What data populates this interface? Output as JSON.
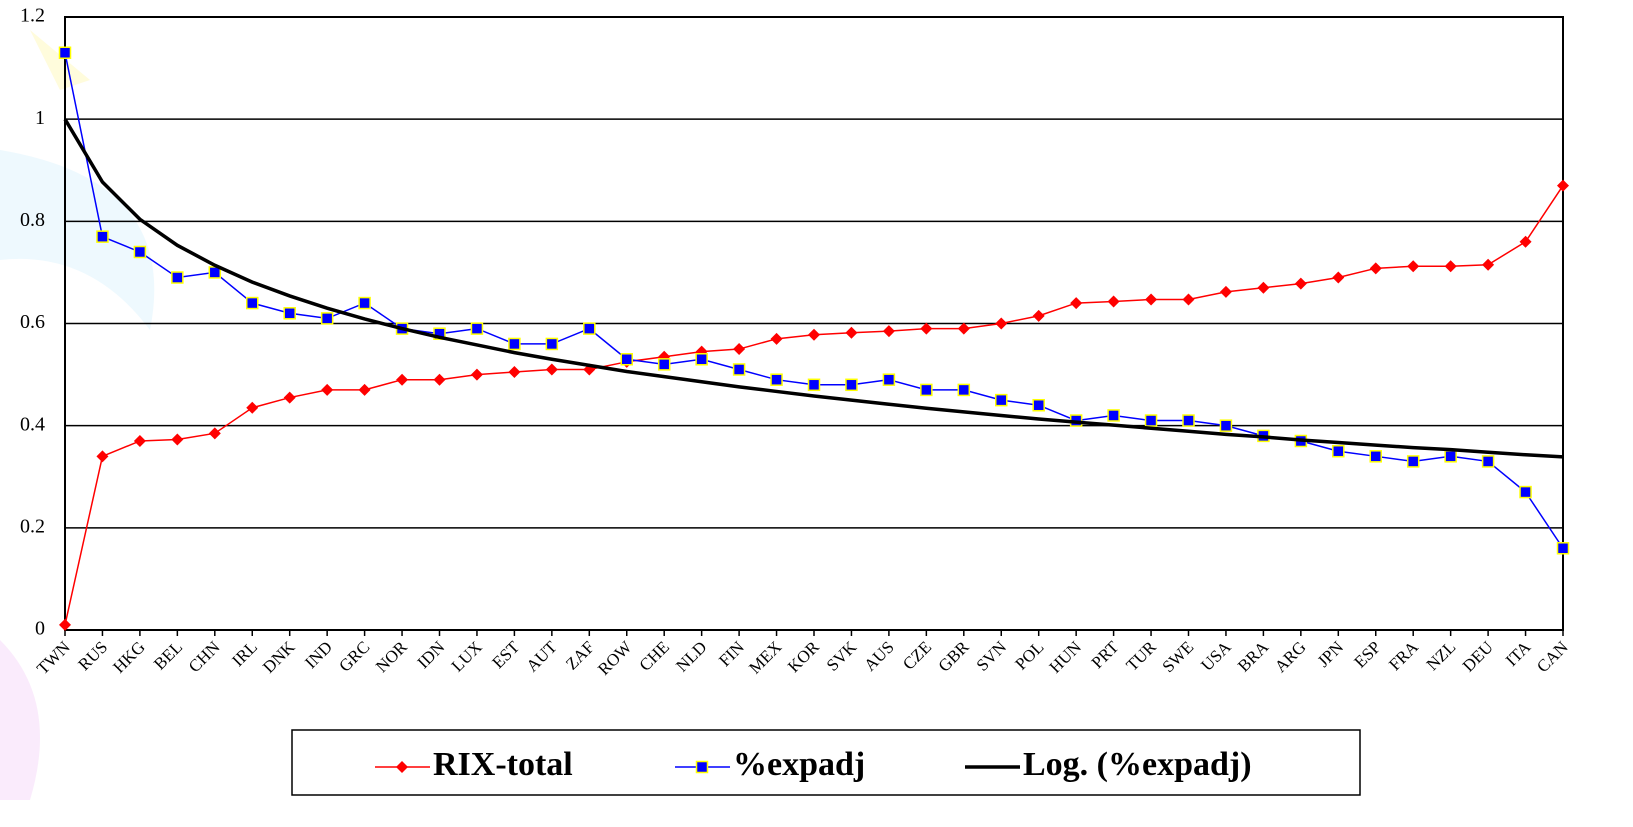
{
  "chart_data": {
    "type": "line",
    "categories": [
      "TWN",
      "RUS",
      "HKG",
      "BEL",
      "CHN",
      "IRL",
      "DNK",
      "IND",
      "GRC",
      "NOR",
      "IDN",
      "LUX",
      "EST",
      "AUT",
      "ZAF",
      "ROW",
      "CHE",
      "NLD",
      "FIN",
      "MEX",
      "KOR",
      "SVK",
      "AUS",
      "CZE",
      "GBR",
      "SVN",
      "POL",
      "HUN",
      "PRT",
      "TUR",
      "SWE",
      "USA",
      "BRA",
      "ARG",
      "JPN",
      "ESP",
      "FRA",
      "NZL",
      "DEU",
      "ITA",
      "CAN"
    ],
    "series": [
      {
        "name": "RIX-total",
        "color": "#ff0000",
        "marker": "diamond",
        "values": [
          0.01,
          0.34,
          0.37,
          0.373,
          0.385,
          0.435,
          0.455,
          0.47,
          0.47,
          0.49,
          0.49,
          0.5,
          0.505,
          0.51,
          0.51,
          0.525,
          0.535,
          0.545,
          0.55,
          0.57,
          0.578,
          0.582,
          0.585,
          0.59,
          0.59,
          0.6,
          0.615,
          0.64,
          0.643,
          0.647,
          0.647,
          0.662,
          0.67,
          0.678,
          0.69,
          0.708,
          0.712,
          0.712,
          0.715,
          0.76,
          0.87
        ]
      },
      {
        "name": "%expadj",
        "color": "#0000ff",
        "marker": "square",
        "values": [
          1.13,
          0.77,
          0.74,
          0.69,
          0.7,
          0.64,
          0.62,
          0.61,
          0.64,
          0.59,
          0.58,
          0.59,
          0.56,
          0.56,
          0.59,
          0.53,
          0.52,
          0.53,
          0.51,
          0.49,
          0.48,
          0.48,
          0.49,
          0.47,
          0.47,
          0.45,
          0.44,
          0.41,
          0.42,
          0.41,
          0.41,
          0.4,
          0.38,
          0.37,
          0.35,
          0.34,
          0.33,
          0.34,
          0.33,
          0.27,
          0.16
        ]
      },
      {
        "name": "Log. (%expadj)",
        "color": "#000000",
        "marker": "none",
        "values": [
          1.0,
          0.877,
          0.804,
          0.753,
          0.714,
          0.681,
          0.654,
          0.63,
          0.609,
          0.59,
          0.573,
          0.558,
          0.543,
          0.53,
          0.518,
          0.506,
          0.496,
          0.486,
          0.476,
          0.467,
          0.458,
          0.45,
          0.442,
          0.434,
          0.427,
          0.42,
          0.413,
          0.407,
          0.401,
          0.395,
          0.389,
          0.383,
          0.378,
          0.372,
          0.367,
          0.362,
          0.357,
          0.353,
          0.348,
          0.343,
          0.339
        ]
      }
    ],
    "ylim": [
      0,
      1.2
    ],
    "yticks": [
      0,
      0.2,
      0.4,
      0.6,
      0.8,
      1,
      1.2
    ],
    "grid": true
  }
}
